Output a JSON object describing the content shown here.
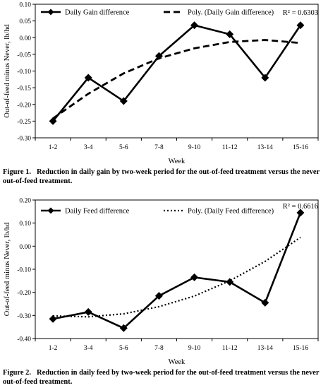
{
  "chart_data": [
    {
      "type": "line",
      "categories": [
        "1-2",
        "3-4",
        "5-6",
        "7-8",
        "9-10",
        "11-12",
        "13-14",
        "15-16"
      ],
      "series": [
        {
          "name": "Daily Gain difference",
          "values": [
            -0.25,
            -0.12,
            -0.19,
            -0.055,
            0.037,
            0.01,
            -0.12,
            0.037
          ]
        },
        {
          "name": "Poly. (Daily Gain difference)",
          "values": [
            -0.242,
            -0.168,
            -0.107,
            -0.062,
            -0.032,
            -0.013,
            -0.007,
            -0.016
          ]
        }
      ],
      "r2_label": "R² = 0.6303",
      "xlabel": "Week",
      "ylabel": "Out-of-feed minus Never, lb/hd",
      "ylim": [
        -0.3,
        0.1
      ],
      "yticks": [
        0.1,
        0.05,
        0.0,
        -0.05,
        -0.1,
        -0.15,
        -0.2,
        -0.25,
        -0.3
      ],
      "ytick_labels": [
        "0.10",
        "0.05",
        "0.00",
        "-0.05",
        "-0.10",
        "-0.15",
        "-0.20",
        "-0.25",
        "-0.30"
      ],
      "grid": false,
      "legend_position": "top"
    },
    {
      "type": "line",
      "categories": [
        "1-2",
        "3-4",
        "5-6",
        "7-8",
        "9-10",
        "11-12",
        "13-14",
        "15-16"
      ],
      "series": [
        {
          "name": "Daily Feed difference",
          "values": [
            -0.315,
            -0.285,
            -0.355,
            -0.215,
            -0.135,
            -0.155,
            -0.245,
            0.145
          ]
        },
        {
          "name": "Poly. (Daily Feed difference)",
          "values": [
            -0.302,
            -0.306,
            -0.293,
            -0.262,
            -0.216,
            -0.15,
            -0.066,
            0.038
          ]
        }
      ],
      "r2_label": "R² = 0.6616",
      "xlabel": "Week",
      "ylabel": "Out-of-feed minus Never, lb/hd",
      "ylim": [
        -0.4,
        0.2
      ],
      "yticks": [
        0.2,
        0.1,
        0.0,
        -0.1,
        -0.2,
        -0.3,
        -0.4
      ],
      "ytick_labels": [
        "0.20",
        "0.10",
        "0.00",
        "-0.10",
        "-0.20",
        "-0.30",
        "-0.40"
      ],
      "grid": false,
      "legend_position": "top"
    }
  ],
  "captions": [
    {
      "number": "Figure 1.",
      "text": "Reduction in daily gain by two-week period for the out-of-feed treatment versus the never out-of-feed treatment."
    },
    {
      "number": "Figure 2.",
      "text": "Reduction in daily feed by two-week period for the out-of-feed treatment versus the never out-of-feed treatment."
    }
  ]
}
